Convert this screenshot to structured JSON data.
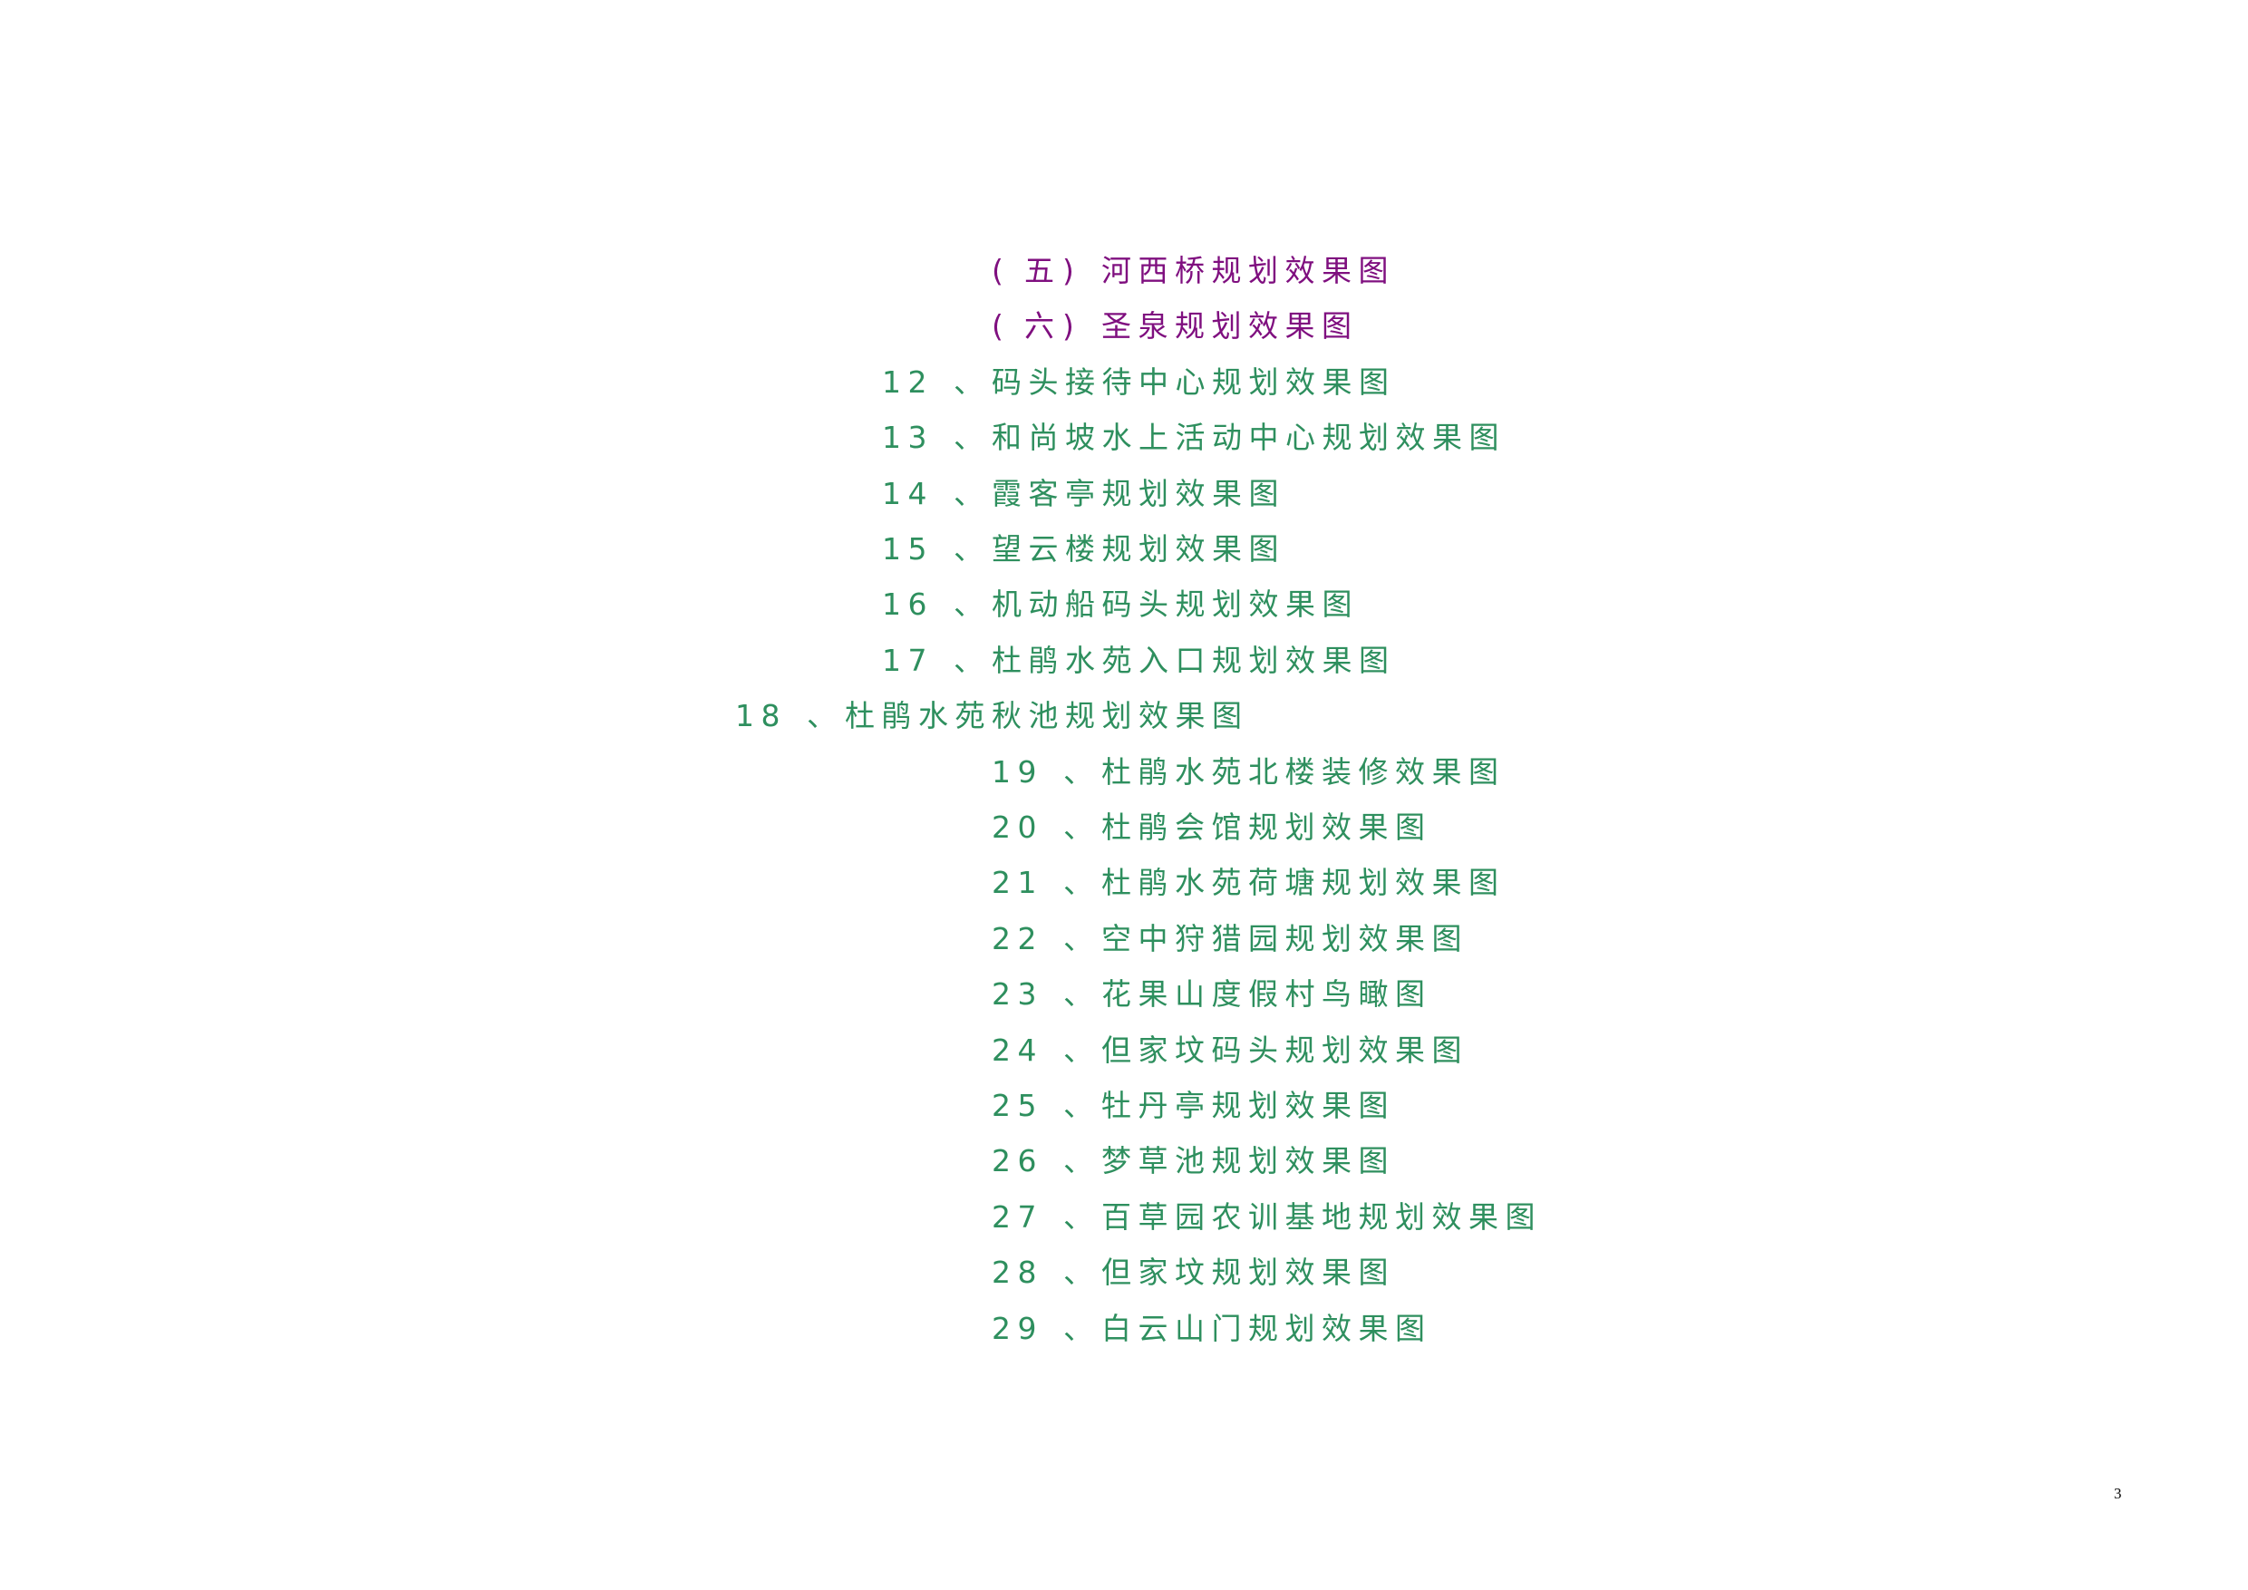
{
  "colors": {
    "section": "#7f0f7f",
    "item": "#2e8f5e"
  },
  "sections": [
    {
      "open": "(",
      "num": "五",
      "close": ")",
      "title": "河西桥规划效果图"
    },
    {
      "open": "(",
      "num": "六",
      "close": ")",
      "title": "圣泉规划效果图"
    }
  ],
  "items": [
    {
      "num": "12",
      "sep": "、",
      "title": "码头接待中心规划效果图"
    },
    {
      "num": "13",
      "sep": "、",
      "title": "和尚坡水上活动中心规划效果图"
    },
    {
      "num": "14",
      "sep": "、",
      "title": "霞客亭规划效果图"
    },
    {
      "num": "15",
      "sep": "、",
      "title": "望云楼规划效果图"
    },
    {
      "num": "16",
      "sep": "、",
      "title": "机动船码头规划效果图"
    },
    {
      "num": "17",
      "sep": "、",
      "title": "杜鹃水苑入口规划效果图"
    },
    {
      "num": "18",
      "sep": "、",
      "title": "杜鹃水苑秋池规划效果图"
    },
    {
      "num": "19",
      "sep": "、",
      "title": "杜鹃水苑北楼装修效果图"
    },
    {
      "num": "20",
      "sep": "、",
      "title": "杜鹃会馆规划效果图"
    },
    {
      "num": "21",
      "sep": "、",
      "title": "杜鹃水苑荷塘规划效果图"
    },
    {
      "num": "22",
      "sep": "、",
      "title": "空中狩猎园规划效果图"
    },
    {
      "num": "23",
      "sep": "、",
      "title": "花果山度假村鸟瞰图"
    },
    {
      "num": "24",
      "sep": "、",
      "title": "但家坟码头规划效果图"
    },
    {
      "num": "25",
      "sep": "、",
      "title": "牡丹亭规划效果图"
    },
    {
      "num": "26",
      "sep": "、",
      "title": "梦草池规划效果图"
    },
    {
      "num": "27",
      "sep": "、",
      "title": "百草园农训基地规划效果图"
    },
    {
      "num": "28",
      "sep": "、",
      "title": "但家坟规划效果图"
    },
    {
      "num": "29",
      "sep": "、",
      "title": "白云山门规划效果图"
    }
  ],
  "page_number": "3"
}
